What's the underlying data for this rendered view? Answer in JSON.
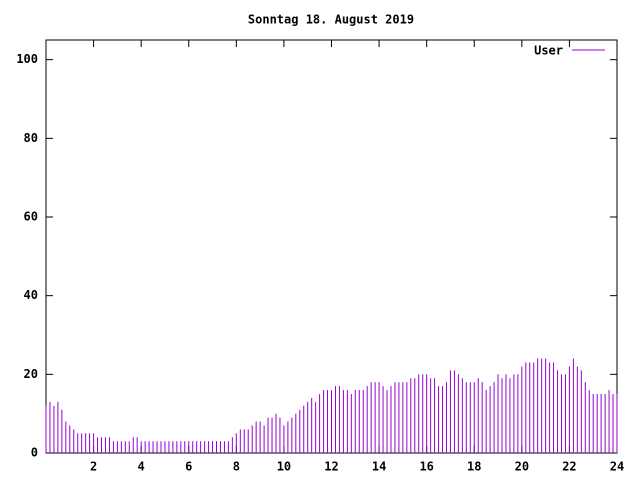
{
  "chart_data": {
    "type": "impulse",
    "title": "Sonntag 18. August 2019",
    "xlim": [
      0,
      24
    ],
    "xticks": [
      2,
      4,
      6,
      8,
      10,
      12,
      14,
      16,
      18,
      20,
      22,
      24
    ],
    "ylim": [
      0,
      105
    ],
    "yticks": [
      0,
      20,
      40,
      60,
      80,
      100
    ],
    "legend": "top-right",
    "series": [
      {
        "name": "User",
        "color": "#9400d3",
        "x": [
          0,
          0.167,
          0.333,
          0.5,
          0.667,
          0.833,
          1,
          1.167,
          1.333,
          1.5,
          1.667,
          1.833,
          2,
          2.167,
          2.333,
          2.5,
          2.667,
          2.833,
          3,
          3.167,
          3.333,
          3.5,
          3.667,
          3.833,
          4,
          4.167,
          4.333,
          4.5,
          4.667,
          4.833,
          5,
          5.167,
          5.333,
          5.5,
          5.667,
          5.833,
          6,
          6.167,
          6.333,
          6.5,
          6.667,
          6.833,
          7,
          7.167,
          7.333,
          7.5,
          7.667,
          7.833,
          8,
          8.167,
          8.333,
          8.5,
          8.667,
          8.833,
          9,
          9.167,
          9.333,
          9.5,
          9.667,
          9.833,
          10,
          10.167,
          10.333,
          10.5,
          10.667,
          10.833,
          11,
          11.167,
          11.333,
          11.5,
          11.667,
          11.833,
          12,
          12.167,
          12.333,
          12.5,
          12.667,
          12.833,
          13,
          13.167,
          13.333,
          13.5,
          13.667,
          13.833,
          14,
          14.167,
          14.333,
          14.5,
          14.667,
          14.833,
          15,
          15.167,
          15.333,
          15.5,
          15.667,
          15.833,
          16,
          16.167,
          16.333,
          16.5,
          16.667,
          16.833,
          17,
          17.167,
          17.333,
          17.5,
          17.667,
          17.833,
          18,
          18.167,
          18.333,
          18.5,
          18.667,
          18.833,
          19,
          19.167,
          19.333,
          19.5,
          19.667,
          19.833,
          20,
          20.167,
          20.333,
          20.5,
          20.667,
          20.833,
          21,
          21.167,
          21.333,
          21.5,
          21.667,
          21.833,
          22,
          22.167,
          22.333,
          22.5,
          22.667,
          22.833,
          23,
          23.167,
          23.333,
          23.5,
          23.667,
          23.833,
          24
        ],
        "values": [
          12,
          13,
          12,
          13,
          11,
          8,
          7,
          6,
          5,
          5,
          5,
          5,
          5,
          4,
          4,
          4,
          4,
          3,
          3,
          3,
          3,
          3,
          4,
          4,
          3,
          3,
          3,
          3,
          3,
          3,
          3,
          3,
          3,
          3,
          3,
          3,
          3,
          3,
          3,
          3,
          3,
          3,
          3,
          3,
          3,
          3,
          3,
          4,
          5,
          6,
          6,
          6,
          7,
          8,
          8,
          7,
          9,
          9,
          10,
          9,
          7,
          8,
          9,
          10,
          11,
          12,
          13,
          14,
          13,
          15,
          16,
          16,
          16,
          17,
          17,
          16,
          16,
          15,
          16,
          16,
          16,
          17,
          18,
          18,
          18,
          17,
          16,
          17,
          18,
          18,
          18,
          18,
          19,
          19,
          20,
          20,
          20,
          19,
          19,
          17,
          17,
          18,
          21,
          21,
          20,
          19,
          18,
          18,
          18,
          19,
          18,
          16,
          17,
          18,
          20,
          19,
          20,
          19,
          20,
          20,
          22,
          23,
          23,
          23,
          24,
          24,
          24,
          23,
          23,
          21,
          20,
          20,
          22,
          24,
          22,
          21,
          18,
          16,
          15,
          15,
          15,
          15,
          16,
          15,
          15
        ]
      }
    ]
  }
}
